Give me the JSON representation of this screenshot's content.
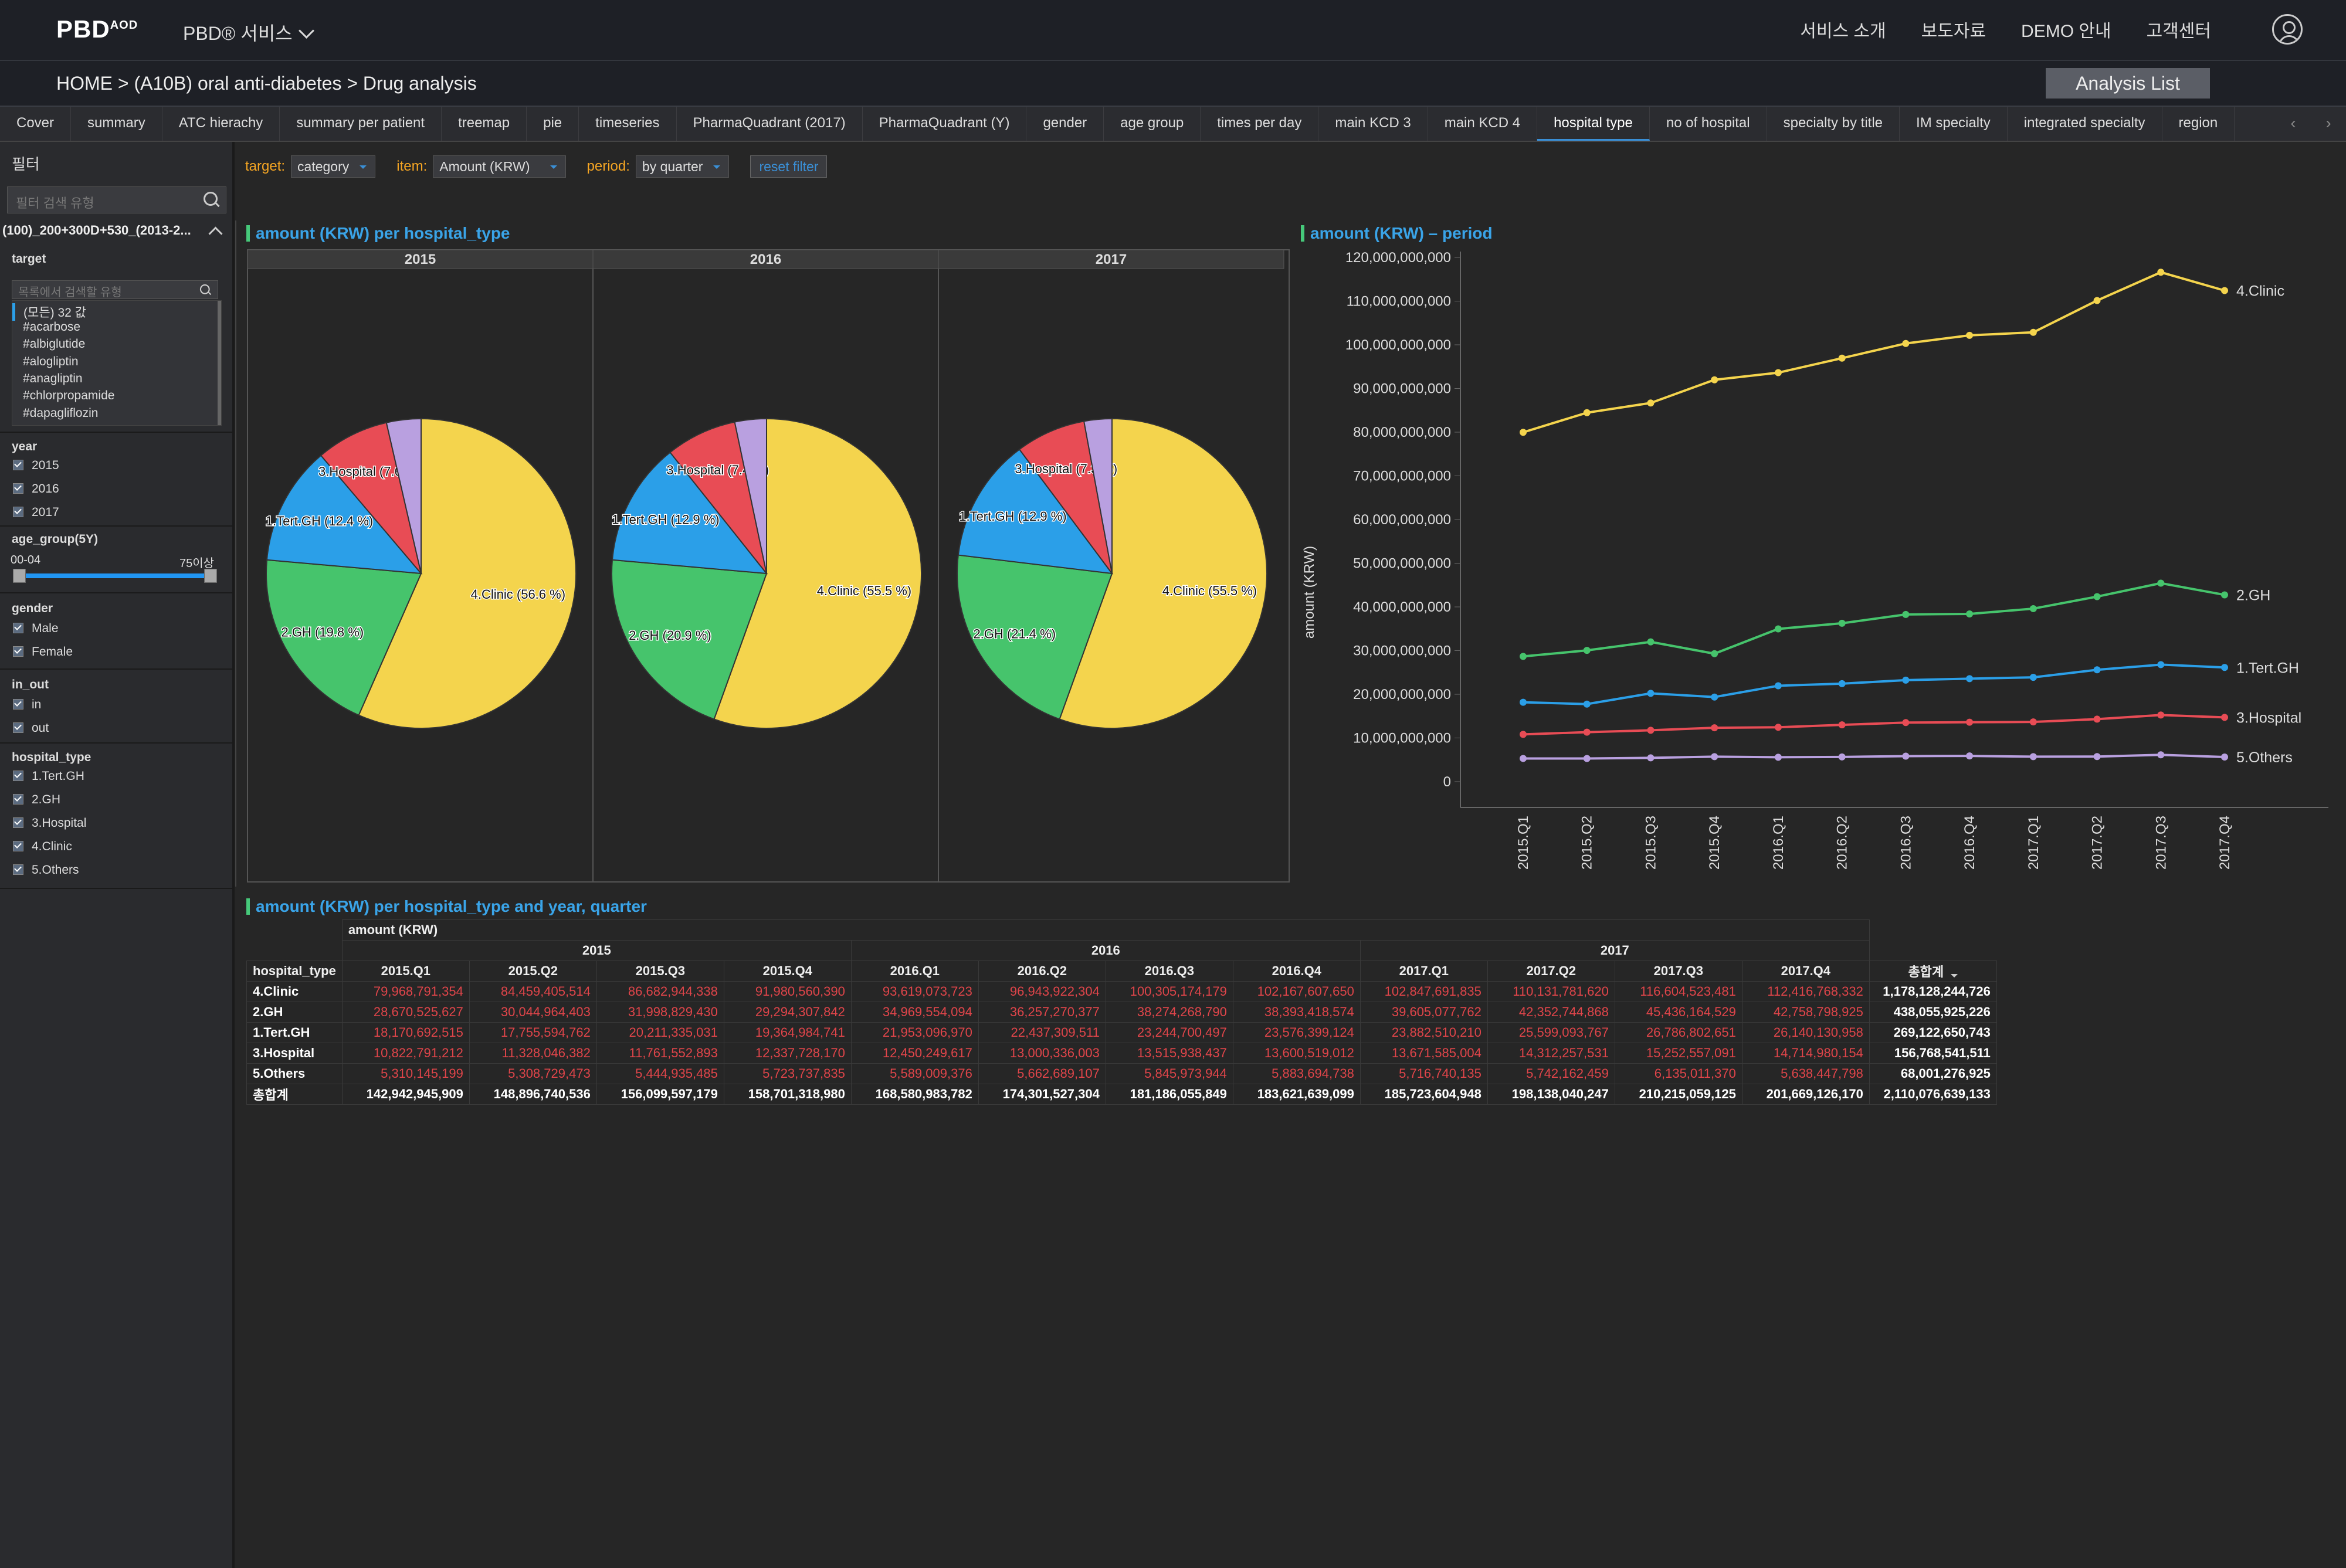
{
  "header": {
    "logo_text": "PBD",
    "logo_sup": "AOD",
    "service_menu": "PBD® 서비스",
    "nav": [
      "서비스 소개",
      "보도자료",
      "DEMO 안내",
      "고객센터"
    ]
  },
  "breadcrumb": "HOME >  (A10B) oral anti-diabetes > Drug analysis",
  "analysis_list_label": "Analysis List",
  "tabs": [
    "Cover",
    "summary",
    "ATC hierachy",
    "summary per patient",
    "treemap",
    "pie",
    "timeseries",
    "PharmaQuadrant (2017)",
    "PharmaQuadrant (Y)",
    "gender",
    "age group",
    "times per day",
    "main KCD 3",
    "main KCD 4",
    "hospital type",
    "no of hospital",
    "specialty by title",
    "IM specialty",
    "integrated specialty",
    "region"
  ],
  "active_tab": "hospital type",
  "sidebar": {
    "title": "필터",
    "search_placeholder": "필터 검색 유형",
    "dataset": "(100)_200+300D+530_(2013-2...",
    "target": {
      "label": "target",
      "search_placeholder": "목록에서 검색할 유형",
      "items": [
        "(모든) 32 값",
        "#acarbose",
        "#albiglutide",
        "#alogliptin",
        "#anagliptin",
        "#chlorpropamide",
        "#dapagliflozin"
      ]
    },
    "year": {
      "label": "year",
      "items": [
        "2015",
        "2016",
        "2017"
      ]
    },
    "age_group": {
      "label": "age_group(5Y)",
      "min": "00-04",
      "max": "75이상"
    },
    "gender": {
      "label": "gender",
      "items": [
        "Male",
        "Female"
      ]
    },
    "in_out": {
      "label": "in_out",
      "items": [
        "in",
        "out"
      ]
    },
    "hospital_type": {
      "label": "hospital_type",
      "items": [
        "1.Tert.GH",
        "2.GH",
        "3.Hospital",
        "4.Clinic",
        "5.Others"
      ]
    }
  },
  "filters": {
    "target_label": "target:",
    "target_value": "category",
    "item_label": "item:",
    "item_value": "Amount (KRW)",
    "period_label": "period:",
    "period_value": "by quarter",
    "reset_label": "reset filter"
  },
  "colors": {
    "4.Clinic": "#f4d44d",
    "2.GH": "#46c46c",
    "1.Tert.GH": "#2b9fe8",
    "3.Hospital": "#e84c55",
    "5.Others": "#b9a0e0"
  },
  "pie_panel": {
    "title": "amount (KRW) per hospital_type",
    "years": [
      "2015",
      "2016",
      "2017"
    ]
  },
  "line_panel": {
    "title": "amount (KRW) – period",
    "ylabel": "amount (KRW)"
  },
  "table_panel": {
    "title": "amount (KRW) per hospital_type and year, quarter",
    "measure": "amount (KRW)",
    "row_header": "hospital_type",
    "total_label": "총합계",
    "years": [
      "2015",
      "2016",
      "2017"
    ],
    "quarters": [
      "2015.Q1",
      "2015.Q2",
      "2015.Q3",
      "2015.Q4",
      "2016.Q1",
      "2016.Q2",
      "2016.Q3",
      "2016.Q4",
      "2017.Q1",
      "2017.Q2",
      "2017.Q3",
      "2017.Q4"
    ],
    "rows": [
      {
        "name": "4.Clinic",
        "values": [
          "79,968,791,354",
          "84,459,405,514",
          "86,682,944,338",
          "91,980,560,390",
          "93,619,073,723",
          "96,943,922,304",
          "100,305,174,179",
          "102,167,607,650",
          "102,847,691,835",
          "110,131,781,620",
          "116,604,523,481",
          "112,416,768,332"
        ],
        "total": "1,178,128,244,726"
      },
      {
        "name": "2.GH",
        "values": [
          "28,670,525,627",
          "30,044,964,403",
          "31,998,829,430",
          "29,294,307,842",
          "34,969,554,094",
          "36,257,270,377",
          "38,274,268,790",
          "38,393,418,574",
          "39,605,077,762",
          "42,352,744,868",
          "45,436,164,529",
          "42,758,798,925"
        ],
        "total": "438,055,925,226"
      },
      {
        "name": "1.Tert.GH",
        "values": [
          "18,170,692,515",
          "17,755,594,762",
          "20,211,335,031",
          "19,364,984,741",
          "21,953,096,970",
          "22,437,309,511",
          "23,244,700,497",
          "23,576,399,124",
          "23,882,510,210",
          "25,599,093,767",
          "26,786,802,651",
          "26,140,130,958"
        ],
        "total": "269,122,650,743"
      },
      {
        "name": "3.Hospital",
        "values": [
          "10,822,791,212",
          "11,328,046,382",
          "11,761,552,893",
          "12,337,728,170",
          "12,450,249,617",
          "13,000,336,003",
          "13,515,938,437",
          "13,600,519,012",
          "13,671,585,004",
          "14,312,257,531",
          "15,252,557,091",
          "14,714,980,154"
        ],
        "total": "156,768,541,511"
      },
      {
        "name": "5.Others",
        "values": [
          "5,310,145,199",
          "5,308,729,473",
          "5,444,935,485",
          "5,723,737,835",
          "5,589,009,376",
          "5,662,689,107",
          "5,845,973,944",
          "5,883,694,738",
          "5,716,740,135",
          "5,742,162,459",
          "6,135,011,370",
          "5,638,447,798"
        ],
        "total": "68,001,276,925"
      }
    ],
    "grand_total": {
      "name": "총합계",
      "values": [
        "142,942,945,909",
        "148,896,740,536",
        "156,099,597,179",
        "158,701,318,980",
        "168,580,983,782",
        "174,301,527,304",
        "181,186,055,849",
        "183,621,639,099",
        "185,723,604,948",
        "198,138,040,247",
        "210,215,059,125",
        "201,669,126,170"
      ],
      "total": "2,110,076,639,133"
    }
  },
  "chart_data": [
    {
      "type": "pie",
      "title": "2015",
      "slices": [
        {
          "name": "4.Clinic",
          "value": 56.6,
          "label": "4.Clinic (56.6 %)"
        },
        {
          "name": "2.GH",
          "value": 19.8,
          "label": "2.GH (19.8 %)"
        },
        {
          "name": "1.Tert.GH",
          "value": 12.4,
          "label": "1.Tert.GH (12.4 %)"
        },
        {
          "name": "3.Hospital",
          "value": 7.6,
          "label": "3.Hospital (7.6 %)"
        },
        {
          "name": "5.Others",
          "value": 3.6,
          "label": ""
        }
      ]
    },
    {
      "type": "pie",
      "title": "2016",
      "slices": [
        {
          "name": "4.Clinic",
          "value": 55.5,
          "label": "4.Clinic (55.5 %)"
        },
        {
          "name": "2.GH",
          "value": 20.9,
          "label": "2.GH (20.9 %)"
        },
        {
          "name": "1.Tert.GH",
          "value": 12.9,
          "label": "1.Tert.GH (12.9 %)"
        },
        {
          "name": "3.Hospital",
          "value": 7.4,
          "label": "3.Hospital (7.4 %)"
        },
        {
          "name": "5.Others",
          "value": 3.3,
          "label": ""
        }
      ]
    },
    {
      "type": "pie",
      "title": "2017",
      "slices": [
        {
          "name": "4.Clinic",
          "value": 55.5,
          "label": "4.Clinic (55.5 %)"
        },
        {
          "name": "2.GH",
          "value": 21.4,
          "label": "2.GH (21.4 %)"
        },
        {
          "name": "1.Tert.GH",
          "value": 12.9,
          "label": "1.Tert.GH (12.9 %)"
        },
        {
          "name": "3.Hospital",
          "value": 7.3,
          "label": "3.Hospital (7.3 %)"
        },
        {
          "name": "5.Others",
          "value": 2.9,
          "label": ""
        }
      ]
    },
    {
      "type": "line",
      "title": "amount (KRW) – period",
      "ylabel": "amount (KRW)",
      "x": [
        "2015.Q1",
        "2015.Q2",
        "2015.Q3",
        "2015.Q4",
        "2016.Q1",
        "2016.Q2",
        "2016.Q3",
        "2016.Q4",
        "2017.Q1",
        "2017.Q2",
        "2017.Q3",
        "2017.Q4"
      ],
      "ylim": [
        0,
        120000000000
      ],
      "yticks": [
        "0",
        "10,000,000,000",
        "20,000,000,000",
        "30,000,000,000",
        "40,000,000,000",
        "50,000,000,000",
        "60,000,000,000",
        "70,000,000,000",
        "80,000,000,000",
        "90,000,000,000",
        "100,000,000,000",
        "110,000,000,000",
        "120,000,000,000"
      ],
      "series": [
        {
          "name": "4.Clinic",
          "values": [
            79968791354,
            84459405514,
            86682944338,
            91980560390,
            93619073723,
            96943922304,
            100305174179,
            102167607650,
            102847691835,
            110131781620,
            116604523481,
            112416768332
          ]
        },
        {
          "name": "2.GH",
          "values": [
            28670525627,
            30044964403,
            31998829430,
            29294307842,
            34969554094,
            36257270377,
            38274268790,
            38393418574,
            39605077762,
            42352744868,
            45436164529,
            42758798925
          ]
        },
        {
          "name": "1.Tert.GH",
          "values": [
            18170692515,
            17755594762,
            20211335031,
            19364984741,
            21953096970,
            22437309511,
            23244700497,
            23576399124,
            23882510210,
            25599093767,
            26786802651,
            26140130958
          ]
        },
        {
          "name": "3.Hospital",
          "values": [
            10822791212,
            11328046382,
            11761552893,
            12337728170,
            12450249617,
            13000336003,
            13515938437,
            13600519012,
            13671585004,
            14312257531,
            15252557091,
            14714980154
          ]
        },
        {
          "name": "5.Others",
          "values": [
            5310145199,
            5308729473,
            5444935485,
            5723737835,
            5589009376,
            5662689107,
            5845973944,
            5883694738,
            5716740135,
            5742162459,
            6135011370,
            5638447798
          ]
        }
      ]
    }
  ]
}
